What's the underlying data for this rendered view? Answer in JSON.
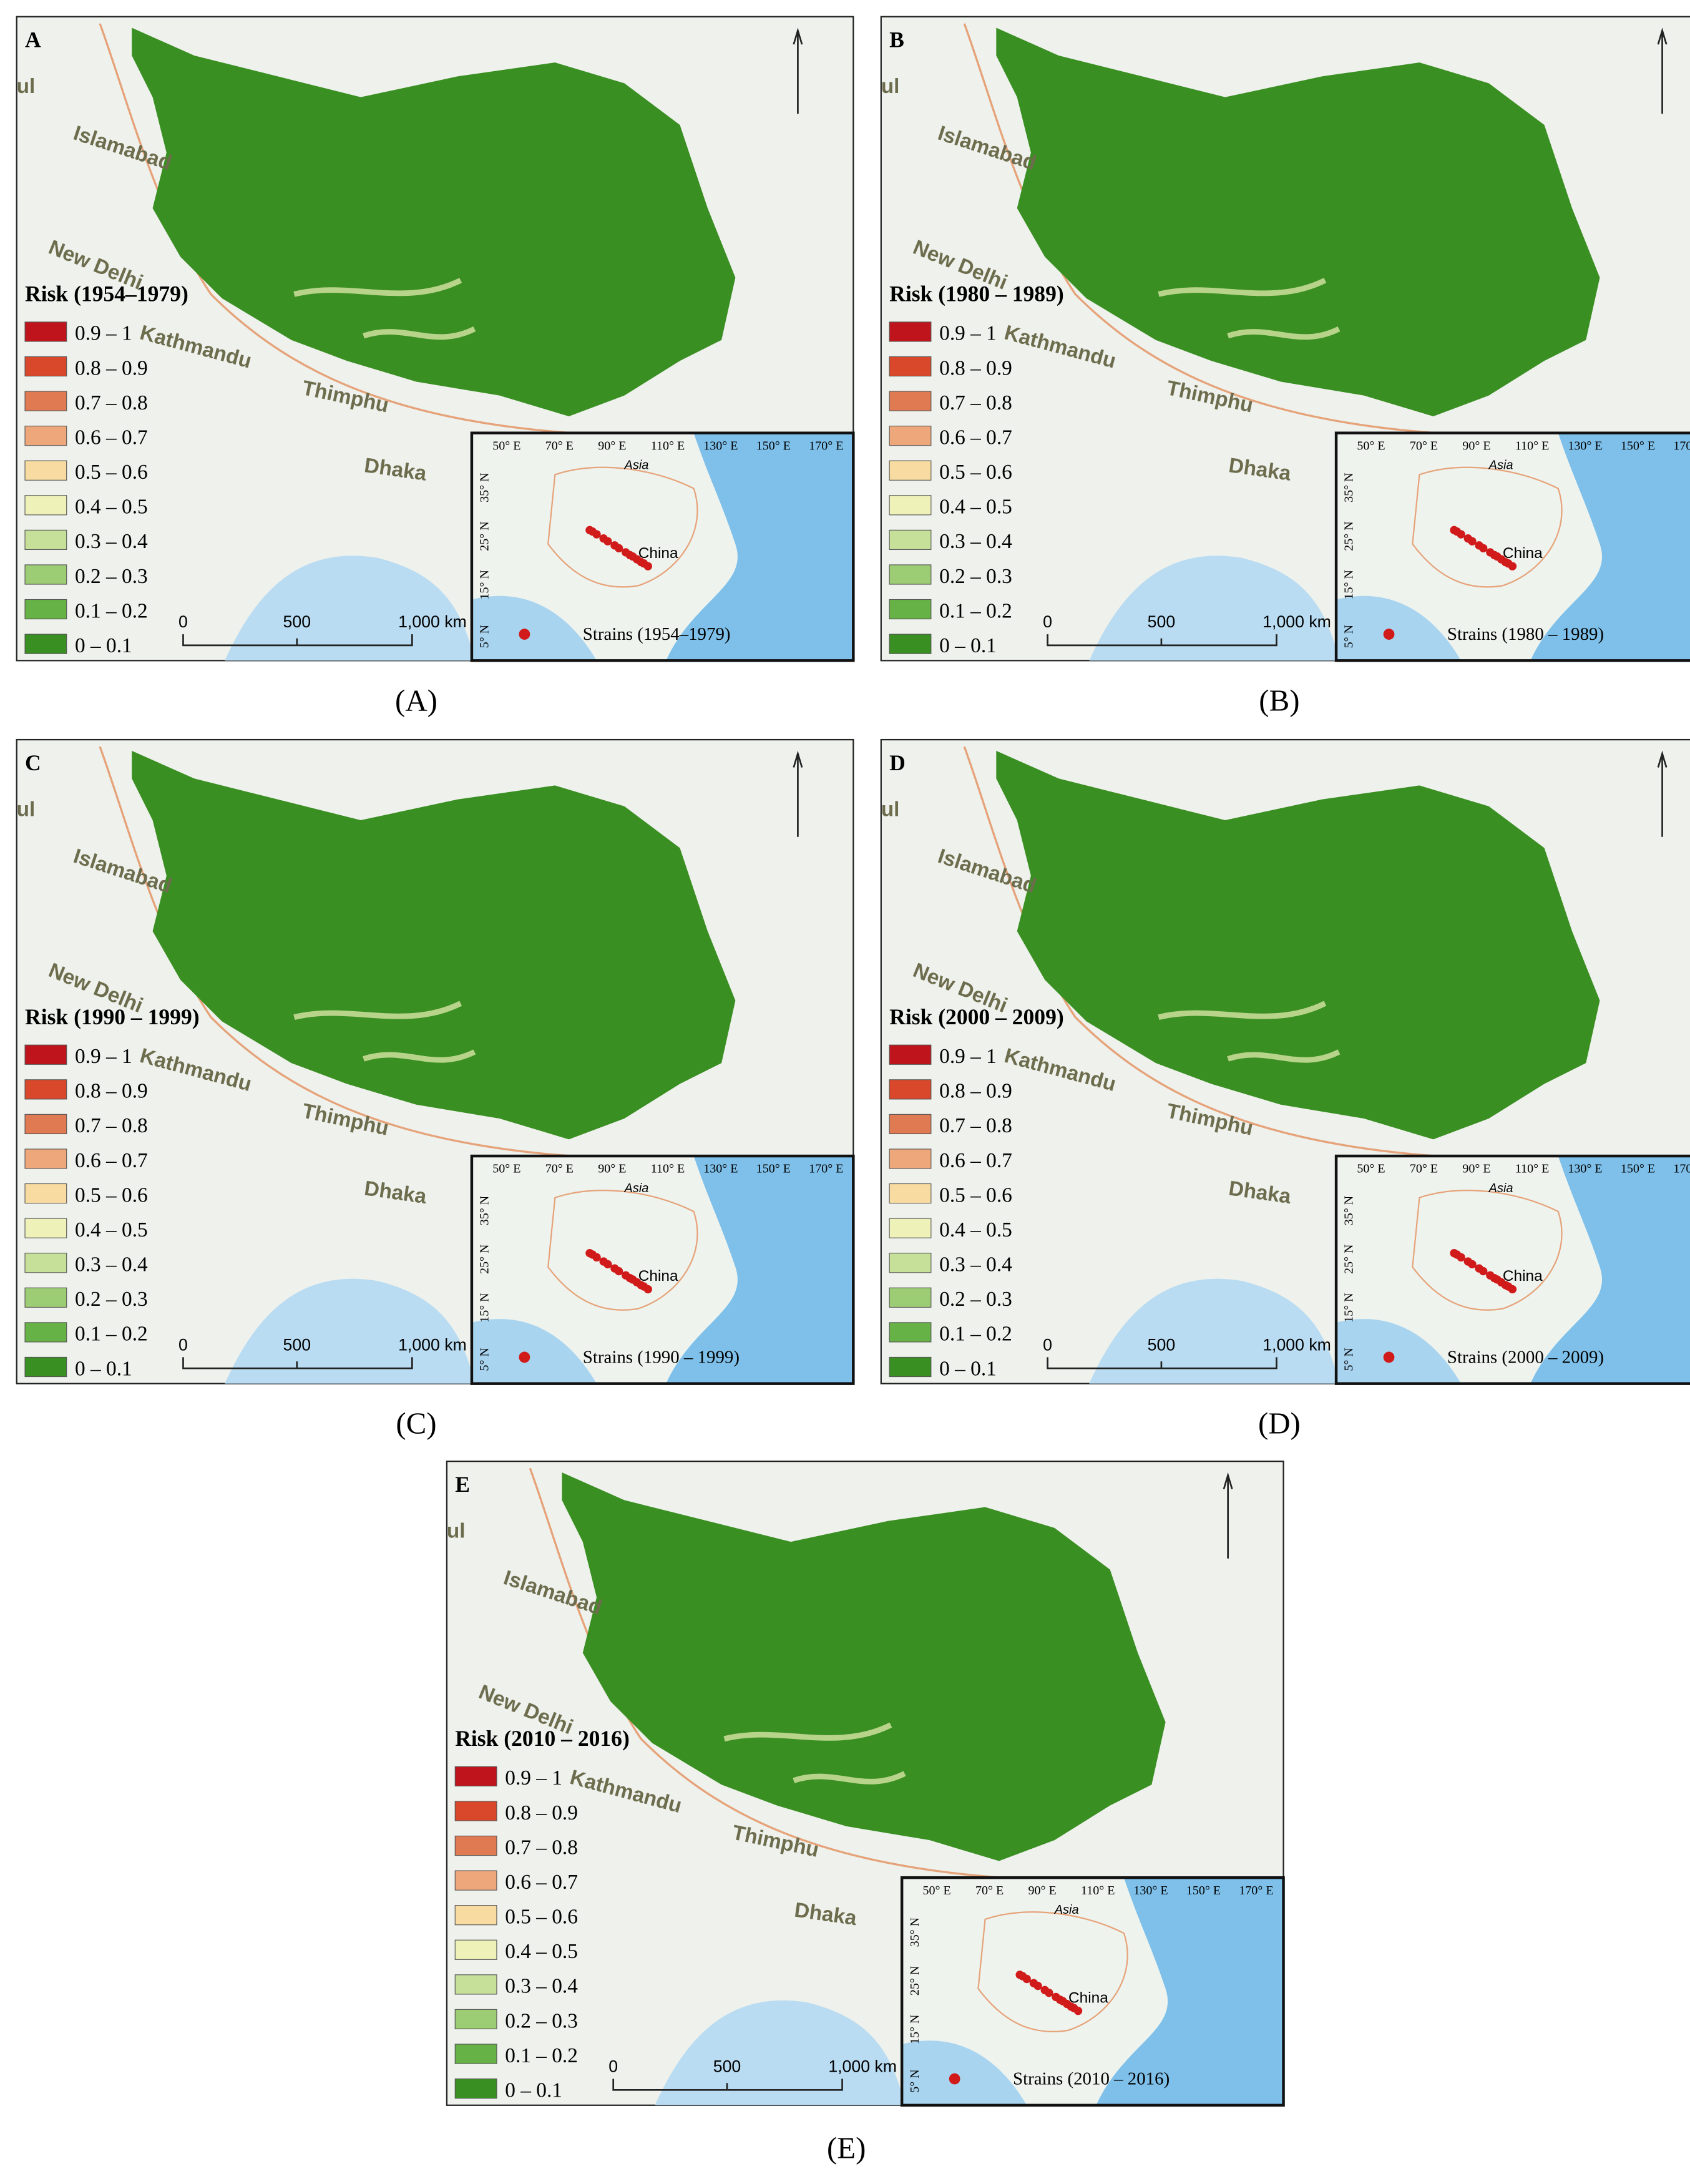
{
  "panels": [
    {
      "letter": "A",
      "legend_title": "Risk (1954–1979)",
      "inset_label": "Strains (1954–1979)",
      "caption": "(A)"
    },
    {
      "letter": "B",
      "legend_title": "Risk (1980 – 1989)",
      "inset_label": "Strains (1980 – 1989)",
      "caption": "(B)"
    },
    {
      "letter": "C",
      "legend_title": "Risk (1990 – 1999)",
      "inset_label": "Strains (1990 – 1999)",
      "caption": "(C)"
    },
    {
      "letter": "D",
      "legend_title": "Risk (2000 – 2009)",
      "inset_label": "Strains (2000 – 2009)",
      "caption": "(D)"
    },
    {
      "letter": "E",
      "legend_title": "Risk (2010 – 2016)",
      "inset_label": "Strains (2010 – 2016)",
      "caption": "(E)"
    }
  ],
  "legend": {
    "classes": [
      "0.9 – 1",
      "0.8 – 0.9",
      "0.7 – 0.8",
      "0.6 – 0.7",
      "0.5 – 0.6",
      "0.4 – 0.5",
      "0.3 – 0.4",
      "0.2 – 0.3",
      "0.1 – 0.2",
      "0 – 0.1"
    ],
    "colors": [
      "#c0141c",
      "#d9482a",
      "#e07a52",
      "#eea77a",
      "#f7dba0",
      "#eef1b8",
      "#c6e09a",
      "#9ccd74",
      "#66b247",
      "#3a8f22"
    ]
  },
  "scale_bar": [
    "0",
    "500",
    "1,000 km"
  ],
  "cities": [
    "Islamabad",
    "New Delhi",
    "Kathmandu",
    "Thimphu",
    "Dhaka",
    "ul"
  ],
  "inset": {
    "longitudes": [
      "50° E",
      "70° E",
      "90° E",
      "110° E",
      "130° E",
      "150° E",
      "170° E"
    ],
    "latitudes": [
      "35° N",
      "25° N",
      "15° N",
      "5° N"
    ],
    "region": "Asia",
    "country": "China"
  }
}
